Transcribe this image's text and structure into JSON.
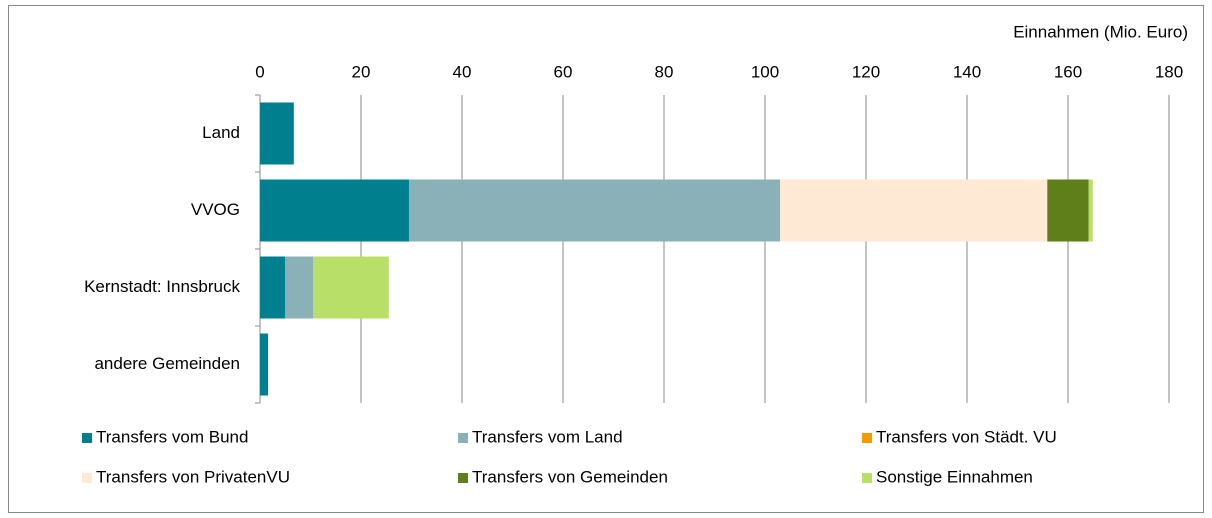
{
  "chart_data": {
    "type": "stacked_barh",
    "x_label": "Einnahmen (Mio. Euro)",
    "categories": [
      "Land",
      "VVOG",
      "Kernstadt: Innsbruck",
      "andere Gemeinden"
    ],
    "series": [
      {
        "name": "Transfers vom Bund",
        "color": "#007f8f",
        "values": [
          6.7,
          29.5,
          5,
          1.6
        ]
      },
      {
        "name": "Transfers vom Land",
        "color": "#8ab0b8",
        "values": [
          0,
          73.5,
          5.5,
          0
        ]
      },
      {
        "name": "Transfers von Städt. VU",
        "color": "#f59b00",
        "values": [
          0,
          0,
          0,
          0
        ]
      },
      {
        "name": "Transfers von PrivatenVU",
        "color": "#fde9d4",
        "values": [
          0,
          52.9,
          0,
          0
        ]
      },
      {
        "name": "Transfers von Gemeinden",
        "color": "#5f7f1a",
        "values": [
          0,
          8.2,
          0,
          0
        ]
      },
      {
        "name": "Sonstige Einnahmen",
        "color": "#b8e068",
        "values": [
          0,
          0.8,
          15,
          0
        ]
      }
    ],
    "xlim": [
      0,
      180
    ],
    "xticks": [
      0,
      20,
      40,
      60,
      80,
      100,
      120,
      140,
      160,
      180
    ],
    "grid": true,
    "legend": "bottom"
  }
}
